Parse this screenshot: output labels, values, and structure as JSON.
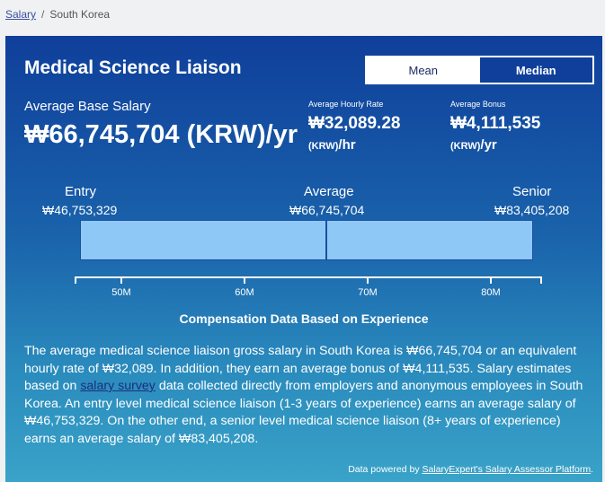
{
  "breadcrumb": {
    "root": "Salary",
    "sep": "/",
    "current": "South Korea"
  },
  "title": "Medical Science Liaison",
  "toggle": {
    "mean": "Mean",
    "median": "Median",
    "selected": "median"
  },
  "base": {
    "label": "Average Base Salary",
    "value": "₩66,745,704 (KRW)/yr"
  },
  "hourly": {
    "label": "Average Hourly Rate",
    "value": "₩32,089.28",
    "unit_small": "(KRW)",
    "unit": "/hr"
  },
  "bonus": {
    "label": "Average Bonus",
    "value": "₩4,111,535",
    "unit_small": "(KRW)",
    "unit": "/yr"
  },
  "levels": {
    "entry": {
      "label": "Entry",
      "value": "₩46,753,329"
    },
    "average": {
      "label": "Average",
      "value": "₩66,745,704"
    },
    "senior": {
      "label": "Senior",
      "value": "₩83,405,208"
    }
  },
  "axis_ticks": [
    "50M",
    "60M",
    "70M",
    "80M"
  ],
  "subheading": "Compensation Data Based on Experience",
  "paragraph": {
    "before_link": "The average medical science liaison gross salary in South Korea is ₩66,745,704 or an equivalent hourly rate of ₩32,089. In addition, they earn an average bonus of ₩4,111,535. Salary estimates based on ",
    "link": "salary survey",
    "after_link": " data collected directly from employers and anonymous employees in South Korea. An entry level medical science liaison (1-3 years of experience) earns an average salary of ₩46,753,329. On the other end, a senior level medical science liaison (8+ years of experience) earns an average salary of ₩83,405,208."
  },
  "footer": {
    "prefix": "Data powered by ",
    "link": "SalaryExpert's Salary Assessor Platform",
    "suffix": "."
  },
  "colors": {
    "bar_fill": "#8ec8f7",
    "card_top": "#0f3f9b",
    "card_bottom": "#3aa3c8"
  }
}
